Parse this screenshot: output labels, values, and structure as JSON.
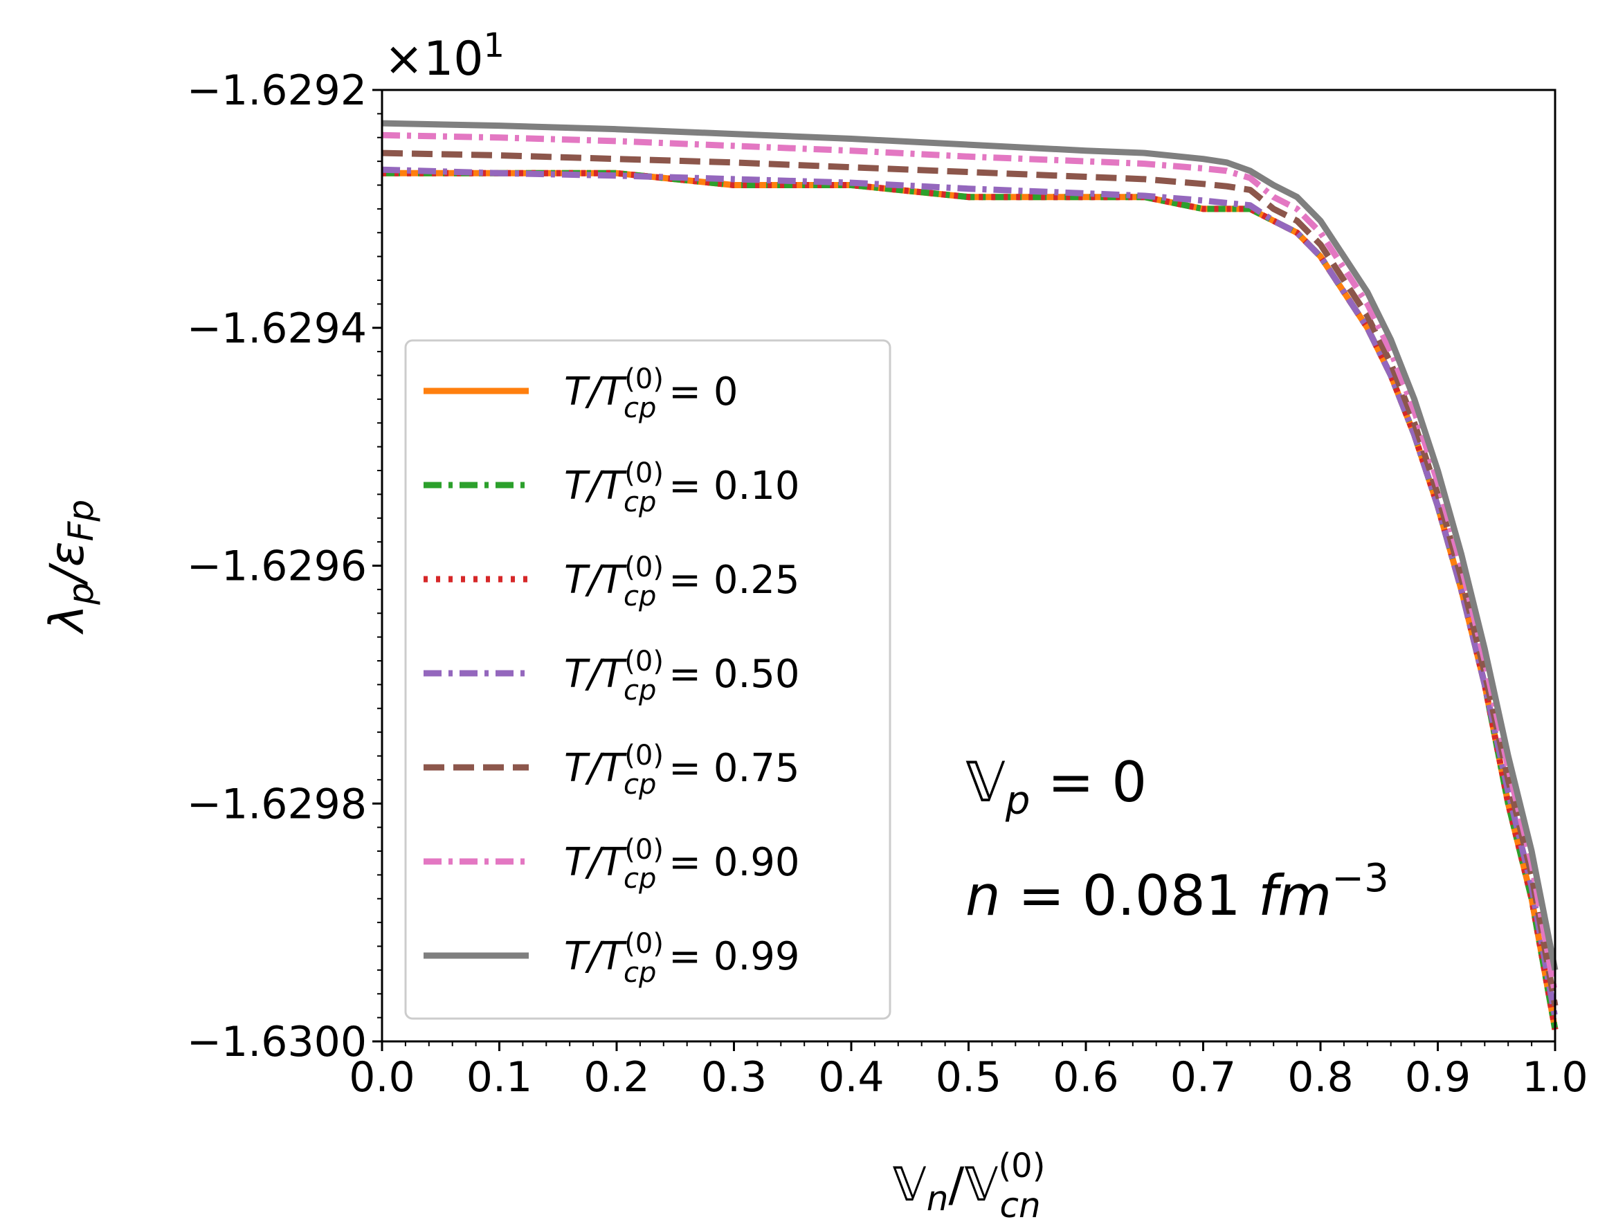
{
  "chart_data": {
    "type": "line",
    "title": "",
    "xlabel": {
      "main": "𝕍",
      "sub1": "n",
      "slash": "/𝕍",
      "sup": "(0)",
      "sub2": "cn"
    },
    "ylabel": {
      "main": "λ",
      "sub1": "p",
      "slash": "/ε",
      "sub2": "Fp"
    },
    "xlim": [
      0.0,
      1.0
    ],
    "ylim": [
      -1.63,
      -1.6292
    ],
    "y_offset_text": {
      "base": "×10",
      "exp": "1"
    },
    "x_ticks": [
      {
        "value": 0.0,
        "label": "0.0"
      },
      {
        "value": 0.1,
        "label": "0.1"
      },
      {
        "value": 0.2,
        "label": "0.2"
      },
      {
        "value": 0.3,
        "label": "0.3"
      },
      {
        "value": 0.4,
        "label": "0.4"
      },
      {
        "value": 0.5,
        "label": "0.5"
      },
      {
        "value": 0.6,
        "label": "0.6"
      },
      {
        "value": 0.7,
        "label": "0.7"
      },
      {
        "value": 0.8,
        "label": "0.8"
      },
      {
        "value": 0.9,
        "label": "0.9"
      },
      {
        "value": 1.0,
        "label": "1.0"
      }
    ],
    "y_ticks": [
      {
        "value": -1.6292,
        "label": "−1.6292"
      },
      {
        "value": -1.6294,
        "label": "−1.6294"
      },
      {
        "value": -1.6296,
        "label": "−1.6296"
      },
      {
        "value": -1.6298,
        "label": "−1.6298"
      },
      {
        "value": -1.63,
        "label": "−1.6300"
      }
    ],
    "x": [
      0.0,
      0.1,
      0.2,
      0.3,
      0.4,
      0.5,
      0.6,
      0.65,
      0.7,
      0.72,
      0.74,
      0.76,
      0.78,
      0.8,
      0.82,
      0.84,
      0.86,
      0.88,
      0.9,
      0.92,
      0.94,
      0.96,
      0.98,
      1.0
    ],
    "series": [
      {
        "name": "T/T_cp^(0) = 0",
        "label_value": "0",
        "color": "#ff7f0e",
        "dash": "solid",
        "values": [
          -1.62927,
          -1.62927,
          -1.62927,
          -1.62928,
          -1.62928,
          -1.62929,
          -1.62929,
          -1.62929,
          -1.6293,
          -1.6293,
          -1.6293,
          -1.62931,
          -1.62932,
          -1.62934,
          -1.62937,
          -1.6294,
          -1.62944,
          -1.62949,
          -1.62955,
          -1.62962,
          -1.6297,
          -1.6298,
          -1.62988,
          -1.62999
        ]
      },
      {
        "name": "T/T_cp^(0) = 0.10",
        "label_value": "0.10",
        "color": "#2ca02c",
        "dash": "dashdot",
        "values": [
          -1.62927,
          -1.62927,
          -1.62927,
          -1.62928,
          -1.62928,
          -1.62929,
          -1.62929,
          -1.62929,
          -1.6293,
          -1.6293,
          -1.6293,
          -1.62931,
          -1.62932,
          -1.62934,
          -1.62937,
          -1.6294,
          -1.62944,
          -1.62949,
          -1.62955,
          -1.62962,
          -1.6297,
          -1.6298,
          -1.62988,
          -1.62999
        ]
      },
      {
        "name": "T/T_cp^(0) = 0.25",
        "label_value": "0.25",
        "color": "#d62728",
        "dash": "dotted",
        "values": [
          -1.62927,
          -1.62927,
          -1.62927,
          -1.62928,
          -1.62928,
          -1.62929,
          -1.62929,
          -1.62929,
          -1.6293,
          -1.6293,
          -1.6293,
          -1.62931,
          -1.62932,
          -1.62934,
          -1.62937,
          -1.6294,
          -1.62944,
          -1.62949,
          -1.62955,
          -1.62962,
          -1.6297,
          -1.6298,
          -1.62988,
          -1.62999
        ]
      },
      {
        "name": "T/T_cp^(0) = 0.50",
        "label_value": "0.50",
        "color": "#9467bd",
        "dash": "dashdot",
        "values": [
          -1.629267,
          -1.62927,
          -1.629272,
          -1.629275,
          -1.629278,
          -1.629283,
          -1.629287,
          -1.629289,
          -1.629293,
          -1.629295,
          -1.629297,
          -1.62931,
          -1.62932,
          -1.62934,
          -1.62937,
          -1.6294,
          -1.62944,
          -1.62949,
          -1.62955,
          -1.62962,
          -1.6297,
          -1.62979,
          -1.62987,
          -1.62998
        ]
      },
      {
        "name": "T/T_cp^(0) = 0.75",
        "label_value": "0.75",
        "color": "#8c564b",
        "dash": "dashed",
        "values": [
          -1.629253,
          -1.629255,
          -1.629258,
          -1.629261,
          -1.629265,
          -1.629269,
          -1.629273,
          -1.629275,
          -1.629279,
          -1.629281,
          -1.629284,
          -1.6293,
          -1.62931,
          -1.62933,
          -1.62936,
          -1.62939,
          -1.62943,
          -1.62948,
          -1.62954,
          -1.62961,
          -1.62969,
          -1.62978,
          -1.62986,
          -1.62997
        ]
      },
      {
        "name": "T/T_cp^(0) = 0.90",
        "label_value": "0.90",
        "color": "#e377c2",
        "dash": "dashdot",
        "values": [
          -1.629238,
          -1.62924,
          -1.629243,
          -1.629247,
          -1.629251,
          -1.629256,
          -1.62926,
          -1.629262,
          -1.629266,
          -1.629268,
          -1.629274,
          -1.62929,
          -1.6293,
          -1.62932,
          -1.62935,
          -1.62938,
          -1.62942,
          -1.62947,
          -1.62953,
          -1.6296,
          -1.62968,
          -1.62977,
          -1.62985,
          -1.62996
        ]
      },
      {
        "name": "T/T_cp^(0) = 0.99",
        "label_value": "0.99",
        "color": "#7f7f7f",
        "dash": "solid",
        "values": [
          -1.629228,
          -1.62923,
          -1.629233,
          -1.629237,
          -1.629241,
          -1.629246,
          -1.629251,
          -1.629253,
          -1.629258,
          -1.629261,
          -1.629268,
          -1.62928,
          -1.62929,
          -1.62931,
          -1.62934,
          -1.62937,
          -1.62941,
          -1.62946,
          -1.62952,
          -1.62959,
          -1.62967,
          -1.62976,
          -1.62984,
          -1.62994
        ]
      }
    ],
    "legend": {
      "location": "center-left",
      "prefix": "T/T",
      "sup": "(0)",
      "sub": "cp",
      "eq": " = "
    },
    "annotations": [
      {
        "line1_sym": "𝕍",
        "line1_sub": "p",
        "line1_rest": " = 0"
      },
      {
        "line2_sym": "n",
        "line2_rest": " = ",
        "line2_value": " 0.081 ",
        "line2_unit": "fm",
        "line2_sup": "−3"
      }
    ]
  }
}
